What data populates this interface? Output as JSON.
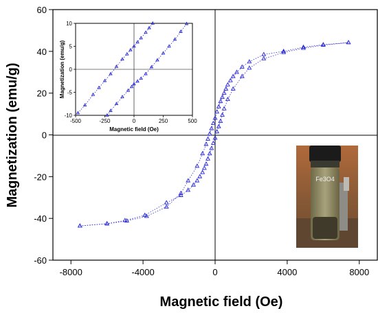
{
  "chart_data": [
    {
      "type": "scatter",
      "xlabel": "Magnetic field (Oe)",
      "ylabel": "Magnetization (emu/g)",
      "xlim": [
        -9000,
        9000
      ],
      "ylim": [
        -60,
        60
      ],
      "xticks": [
        -8000,
        -4000,
        0,
        4000,
        8000
      ],
      "yticks": [
        -60,
        -40,
        -20,
        0,
        20,
        40,
        60
      ],
      "series": [
        {
          "marker_color": "#2b2bd6",
          "x": [
            -7500,
            -6000,
            -5000,
            -3900,
            -2700,
            -1900,
            -1500,
            -1200,
            -1000,
            -850,
            -700,
            -600,
            -500,
            -400,
            -300,
            -200,
            -100,
            0,
            100,
            200,
            300,
            400,
            500,
            700,
            1000,
            1500,
            1900,
            2700,
            3800,
            4900,
            6000,
            7400
          ],
          "y": [
            -43.6,
            -42.5,
            -41,
            -38.5,
            -32.5,
            -29,
            -26.5,
            -24,
            -22,
            -20,
            -18,
            -16,
            -14,
            -11.5,
            -9,
            -6.5,
            -4,
            -1.5,
            1.5,
            4,
            6.5,
            9.5,
            12.5,
            17,
            22,
            28,
            32,
            36.5,
            39.5,
            41.5,
            43,
            44.2
          ]
        },
        {
          "marker_color": "#2b2bd6",
          "x": [
            7400,
            6000,
            4900,
            3800,
            2700,
            1900,
            1500,
            1200,
            1000,
            850,
            700,
            600,
            500,
            400,
            300,
            200,
            100,
            0,
            -100,
            -200,
            -300,
            -400,
            -500,
            -700,
            -1000,
            -1500,
            -1900,
            -2700,
            -3800,
            -4900,
            -6000,
            -7500
          ],
          "y": [
            44.2,
            43.2,
            42,
            40,
            38.5,
            35,
            32.5,
            30,
            28,
            26,
            24,
            22,
            20,
            18,
            16,
            13.5,
            11,
            8,
            5.5,
            3,
            0.5,
            -2,
            -4.5,
            -9,
            -15,
            -22,
            -28,
            -34.5,
            -39,
            -41.2,
            -42.6,
            -43.6
          ]
        }
      ]
    },
    {
      "type": "scatter",
      "xlabel": "Magnetic field (Oe)",
      "ylabel": "Magnetization (emu/g)",
      "xlim": [
        -500,
        500
      ],
      "ylim": [
        -10,
        10
      ],
      "xticks": [
        -500,
        -250,
        0,
        250,
        500
      ],
      "yticks": [
        -10,
        -5,
        0,
        5,
        10
      ],
      "series": [
        {
          "marker_color": "#2b2bd6",
          "x": [
            -480,
            -420,
            -350,
            -300,
            -250,
            -200,
            -150,
            -100,
            -60,
            -30,
            0,
            30,
            60,
            100,
            130,
            160
          ],
          "y": [
            -9.5,
            -7.8,
            -5.5,
            -4.0,
            -2.5,
            -1.0,
            0.6,
            2.2,
            3.3,
            4.2,
            5.0,
            5.9,
            6.8,
            8.0,
            9.0,
            10.0
          ]
        },
        {
          "marker_color": "#2b2bd6",
          "x": [
            -230,
            -200,
            -150,
            -100,
            -50,
            -20,
            0,
            30,
            60,
            100,
            150,
            200,
            250,
            300,
            350,
            400,
            450
          ],
          "y": [
            -10.0,
            -9.0,
            -7.5,
            -6.0,
            -4.6,
            -3.8,
            -3.2,
            -2.6,
            -2.0,
            -1.0,
            0.5,
            2.0,
            3.5,
            5.0,
            6.5,
            8.2,
            9.9
          ]
        }
      ]
    }
  ],
  "photo": {
    "label": "Fe3O4"
  }
}
